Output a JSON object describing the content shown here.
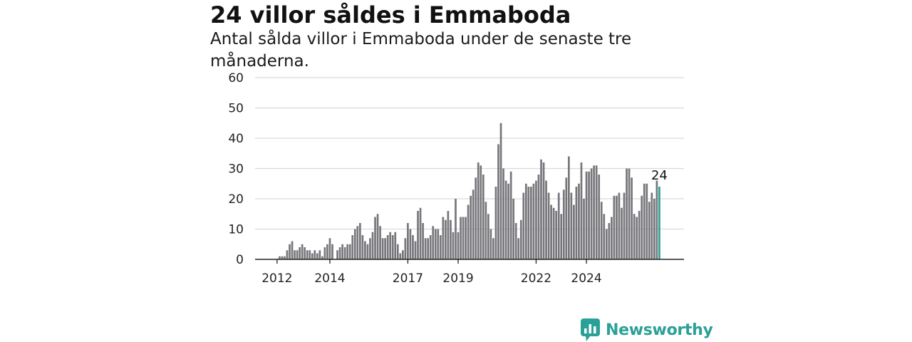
{
  "title": "24 villor såldes i Emmaboda",
  "subtitle": "Antal sålda villor i Emmaboda under de senaste tre månaderna.",
  "brand": {
    "name": "Newsworthy",
    "color": "#2aa198",
    "icon": "newsworthy-logo-icon"
  },
  "colors": {
    "bar": "#77767b",
    "highlight": "#2aa198",
    "grid": "#d9d9d9",
    "axis": "#222222"
  },
  "chart_data": {
    "type": "bar",
    "title": "24 villor såldes i Emmaboda",
    "subtitle": "Antal sålda villor i Emmaboda under de senaste tre månaderna.",
    "xlabel": "",
    "ylabel": "",
    "ylim": [
      0,
      60
    ],
    "y_ticks": [
      0,
      10,
      20,
      30,
      40,
      50,
      60
    ],
    "x_ticks": [
      {
        "label": "2012",
        "index": 0
      },
      {
        "label": "2014",
        "index": 21
      },
      {
        "label": "2017",
        "index": 52
      },
      {
        "label": "2019",
        "index": 72
      },
      {
        "label": "2022",
        "index": 103
      },
      {
        "label": "2024",
        "index": 123
      }
    ],
    "grid": true,
    "highlight_last": true,
    "last_value_label": "24",
    "values": [
      0,
      1,
      1,
      1,
      3,
      5,
      6,
      3,
      3,
      4,
      5,
      4,
      3,
      3,
      2,
      3,
      2,
      3,
      1,
      4,
      5,
      7,
      5,
      0,
      3,
      4,
      5,
      4,
      5,
      5,
      8,
      10,
      11,
      12,
      8,
      6,
      5,
      7,
      9,
      14,
      15,
      11,
      7,
      7,
      8,
      9,
      8,
      9,
      5,
      2,
      3,
      7,
      12,
      10,
      8,
      6,
      16,
      17,
      12,
      7,
      7,
      8,
      11,
      10,
      10,
      8,
      14,
      13,
      16,
      13,
      9,
      20,
      9,
      14,
      14,
      14,
      18,
      21,
      23,
      27,
      32,
      31,
      28,
      19,
      15,
      10,
      7,
      24,
      38,
      45,
      30,
      26,
      25,
      29,
      20,
      12,
      7,
      13,
      22,
      25,
      24,
      24,
      25,
      26,
      28,
      33,
      32,
      26,
      22,
      18,
      17,
      16,
      22,
      15,
      23,
      27,
      34,
      22,
      18,
      24,
      25,
      32,
      20,
      29,
      29,
      30,
      31,
      31,
      28,
      19,
      15,
      10,
      12,
      14,
      21,
      21,
      22,
      17,
      22,
      30,
      30,
      27,
      15,
      14,
      16,
      21,
      25,
      25,
      19,
      22,
      20,
      26,
      24
    ]
  }
}
